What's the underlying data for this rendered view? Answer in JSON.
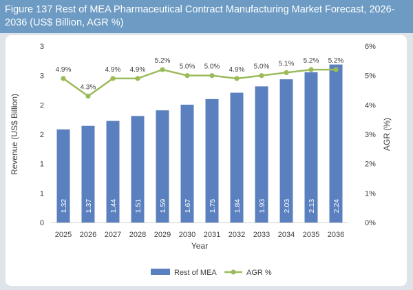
{
  "title": "Figure 137 Rest of MEA Pharmaceutical Contract Manufacturing Market Forecast, 2026-2036 (US$ Billion, AGR %)",
  "chart_data": {
    "type": "bar",
    "categories": [
      "2025",
      "2026",
      "2027",
      "2028",
      "2029",
      "2030",
      "2031",
      "2032",
      "2033",
      "2034",
      "2035",
      "2036"
    ],
    "series": [
      {
        "name": "Rest of MEA",
        "type": "bar",
        "axis": "left",
        "values": [
          1.32,
          1.37,
          1.44,
          1.51,
          1.59,
          1.67,
          1.75,
          1.84,
          1.93,
          2.03,
          2.13,
          2.24
        ],
        "color": "#5b80bf"
      },
      {
        "name": "AGR %",
        "type": "line",
        "axis": "right",
        "values": [
          4.9,
          4.3,
          4.9,
          4.9,
          5.2,
          5.0,
          5.0,
          4.9,
          5.0,
          5.1,
          5.2,
          5.2
        ],
        "color": "#9bbb59"
      }
    ],
    "bar_labels": [
      "1.32",
      "1.37",
      "1.44",
      "1.51",
      "1.59",
      "1.67",
      "1.75",
      "1.84",
      "1.93",
      "2.03",
      "2.13",
      "2.24"
    ],
    "line_labels": [
      "4.9%",
      "4.3%",
      "4.9%",
      "4.9%",
      "5.2%",
      "5.0%",
      "5.0%",
      "4.9%",
      "5.0%",
      "5.1%",
      "5.2%",
      "5.2%"
    ],
    "left_axis": {
      "ylim": [
        0,
        2.5
      ],
      "tick_values": [
        0,
        0.5,
        1,
        1.5,
        2,
        2.5,
        3
      ],
      "tick_labels": [
        "0",
        "1",
        "1",
        "2",
        "2",
        "3",
        "3"
      ]
    },
    "right_axis": {
      "ylim": [
        0,
        6
      ],
      "tick_values": [
        0,
        1,
        2,
        3,
        4,
        5,
        6
      ],
      "tick_labels": [
        "0%",
        "1%",
        "2%",
        "3%",
        "4%",
        "5%",
        "6%"
      ]
    },
    "xlabel": "Year",
    "ylabel": "Revenue (US$ Billion)",
    "y2label": "AGR (%)",
    "grid": false,
    "legend_position": "bottom"
  }
}
